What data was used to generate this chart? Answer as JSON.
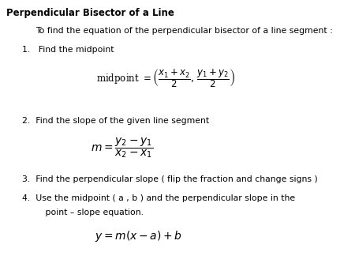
{
  "title": "Perpendicular Bisector of a Line",
  "bg_color": "#ffffff",
  "text_color": "#000000",
  "intro": "To find the equation of the perpendicular bisector of a line segment :",
  "step1_label": "1.   Find the midpoint",
  "step1_formula": "midpoint $= \\left(\\dfrac{x_1 + x_2}{2},\\, \\dfrac{y_1 + y_2}{2}\\right)$",
  "step2_label": "2.  Find the slope of the given line segment",
  "step2_formula": "$m = \\dfrac{y_2 - y_1}{x_2 - x_1}$",
  "step3_label": "3.  Find the perpendicular slope ( flip the fraction and change signs )",
  "step4_label": "4.  Use the midpoint ( a , b ) and the perpendicular slope in the",
  "step4_label2": "     point – slope equation.",
  "step4_formula": "$y = m(x - a) + b$",
  "title_fontsize": 8.5,
  "body_fontsize": 7.8,
  "formula_fontsize": 8.5
}
